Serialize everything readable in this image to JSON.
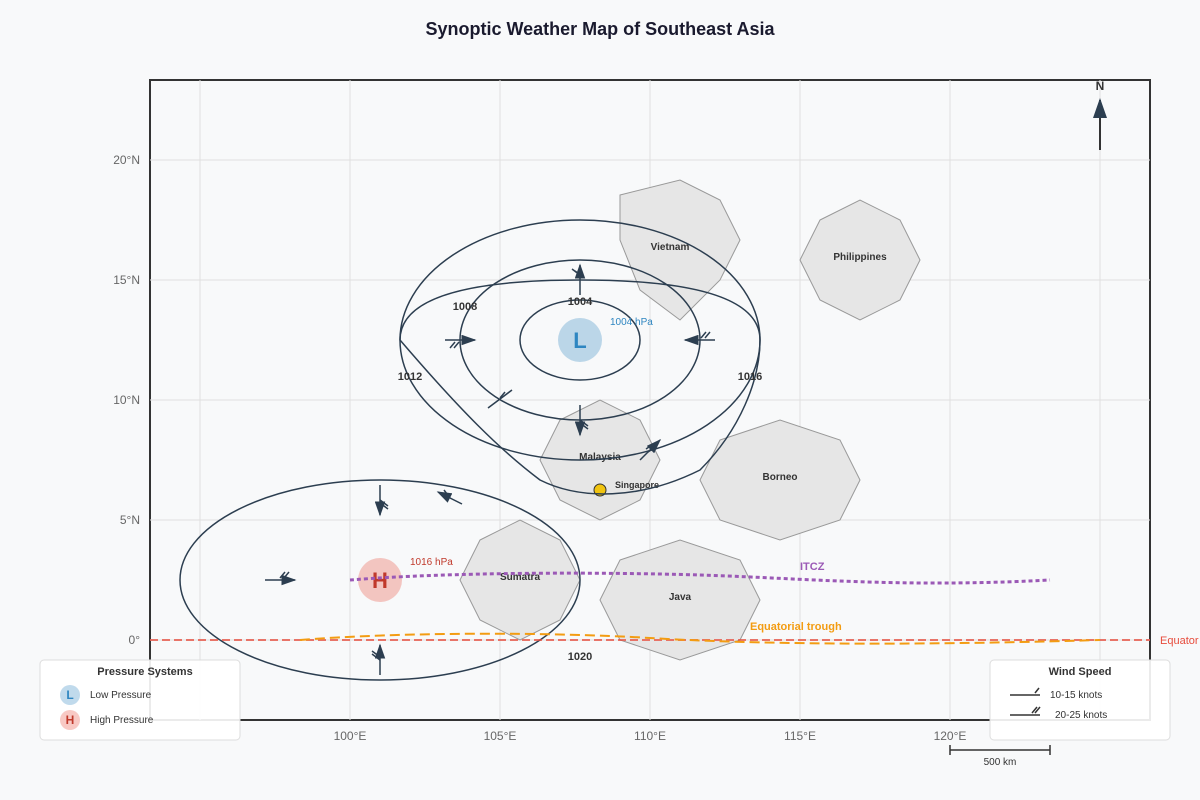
{
  "title": "Synoptic Weather Map of Southeast Asia",
  "north_label": "N",
  "lat_labels": [
    "20°N",
    "15°N",
    "10°N",
    "5°N",
    "0°"
  ],
  "lon_labels": [
    "100°E",
    "105°E",
    "110°E",
    "115°E",
    "120°E"
  ],
  "regions": {
    "vietnam": "Vietnam",
    "philippines": "Philippines",
    "malaysia": "Malaysia",
    "borneo": "Borneo",
    "sumatra": "Sumatra",
    "java": "Java",
    "singapore": "Singapore"
  },
  "isobars": {
    "i1004": "1004",
    "i1008": "1008",
    "i1012": "1012",
    "i1016": "1016",
    "i1020": "1020"
  },
  "low": {
    "symbol": "L",
    "pressure": "1004 hPa"
  },
  "high": {
    "symbol": "H",
    "pressure": "1016 hPa"
  },
  "features": {
    "itcz": "ITCZ",
    "trough": "Equatorial trough",
    "equator": "Equator"
  },
  "pressure_legend": {
    "title": "Pressure Systems",
    "low_symbol": "L",
    "low_label": "Low Pressure",
    "high_symbol": "H",
    "high_label": "High Pressure"
  },
  "wind_legend": {
    "title": "Wind Speed",
    "speed1": "10-15 knots",
    "speed2": "20-25 knots"
  },
  "scale_label": "500 km",
  "colors": {
    "low": "#2e86c1",
    "high": "#c0392b",
    "itcz": "#9b59b6",
    "trough": "#f39c12",
    "equator": "#e74c3c",
    "isobar": "#2c3e50",
    "land": "#e6e6e6"
  }
}
